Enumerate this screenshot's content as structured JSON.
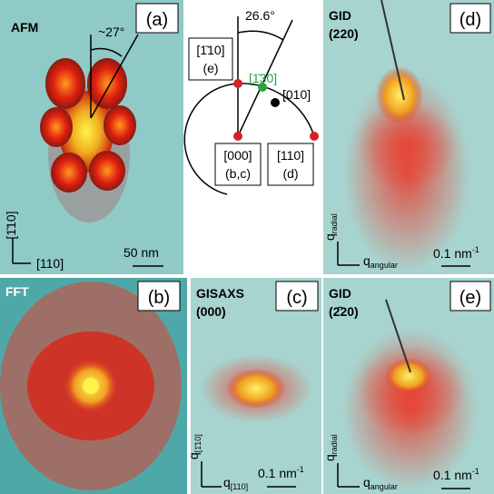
{
  "panels": {
    "a": {
      "label": "(a)",
      "title": "AFM",
      "angle": "~27°",
      "axis_vertical": "[1̄10]",
      "axis_horizontal": "[110]",
      "scale": "50 nm"
    },
    "diagram": {
      "angle": "26.6°",
      "nodes": [
        {
          "index": "[1̄10]",
          "panel": "(e)"
        },
        {
          "index": "[1̄30]"
        },
        {
          "index": "[010]"
        },
        {
          "index": "[000]",
          "panel": "(b,c)"
        },
        {
          "index": "[110]",
          "panel": "(d)"
        }
      ]
    },
    "d": {
      "label": "(d)",
      "title": [
        "GID",
        "(220)"
      ],
      "q_vertical": {
        "symbol": "q",
        "subscript": "radial"
      },
      "q_horizontal": {
        "symbol": "q",
        "subscript": "angular"
      },
      "scale": {
        "text": "0.1 nm",
        "superscript": "-1"
      }
    },
    "b": {
      "label": "(b)",
      "title": "FFT"
    },
    "c": {
      "label": "(c)",
      "title": [
        "GISAXS",
        "(000)"
      ],
      "q_vertical": {
        "symbol": "q",
        "subscript": "[1̄10]"
      },
      "q_horizontal": {
        "symbol": "q",
        "subscript": "[110]"
      },
      "scale": {
        "text": "0.1 nm",
        "superscript": "-1"
      }
    },
    "e": {
      "label": "(e)",
      "title": [
        "GID",
        "(2̄20)"
      ],
      "q_vertical": {
        "symbol": "q",
        "subscript": "radial"
      },
      "q_horizontal": {
        "symbol": "q",
        "subscript": "angular"
      },
      "scale": {
        "text": "0.1 nm",
        "superscript": "-1"
      }
    }
  }
}
